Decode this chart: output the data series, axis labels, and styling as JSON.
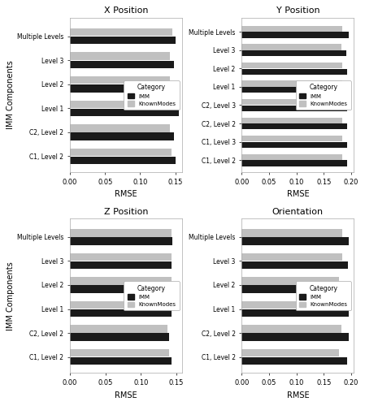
{
  "panels": [
    {
      "title": "X Position",
      "xlabel": "RMSE",
      "ylabel": "IMM Components",
      "xlim": [
        0,
        0.16
      ],
      "xticks": [
        0.0,
        0.05,
        0.1,
        0.15
      ],
      "xticklabels": [
        "0.00",
        "0.05",
        "0.10",
        "0.15"
      ],
      "categories": [
        "C1, Level 2",
        "C2, Level 2",
        "Level 1",
        "Level 2",
        "Level 3",
        "Multiple Levels"
      ],
      "imm": [
        0.15,
        0.148,
        0.155,
        0.148,
        0.148,
        0.15
      ],
      "known": [
        0.145,
        0.143,
        0.145,
        0.143,
        0.143,
        0.146
      ]
    },
    {
      "title": "Y Position",
      "xlabel": "RMSE",
      "ylabel": "IMM Components",
      "xlim": [
        0,
        0.205
      ],
      "xticks": [
        0.0,
        0.05,
        0.1,
        0.15,
        0.2
      ],
      "xticklabels": [
        "0.00",
        "0.05",
        "0.10",
        "0.15",
        "0.20"
      ],
      "categories": [
        "C1, Level 2",
        "C1, Level 3",
        "C2, Level 2",
        "C2, Level 3",
        "Level 1",
        "Level 2",
        "Level 3",
        "Multiple Levels"
      ],
      "imm": [
        0.192,
        0.192,
        0.193,
        0.193,
        0.197,
        0.192,
        0.191,
        0.196
      ],
      "known": [
        0.183,
        0.183,
        0.184,
        0.181,
        0.184,
        0.184,
        0.182,
        0.183
      ]
    },
    {
      "title": "Z Position",
      "xlabel": "RMSE",
      "ylabel": "IMM Components",
      "xlim": [
        0,
        0.158
      ],
      "xticks": [
        0.0,
        0.05,
        0.1,
        0.15
      ],
      "xticklabels": [
        "0.00",
        "0.05",
        "0.10",
        "0.15"
      ],
      "categories": [
        "C1, Level 2",
        "C2, Level 2",
        "Level 1",
        "Level 2",
        "Level 3",
        "Multiple Levels"
      ],
      "imm": [
        0.143,
        0.14,
        0.143,
        0.143,
        0.143,
        0.144
      ],
      "known": [
        0.14,
        0.137,
        0.149,
        0.143,
        0.143,
        0.143
      ]
    },
    {
      "title": "Orientation",
      "xlabel": "RMSE",
      "ylabel": "IMM Components",
      "xlim": [
        0,
        0.205
      ],
      "xticks": [
        0.0,
        0.05,
        0.1,
        0.15,
        0.2
      ],
      "xticklabels": [
        "0.00",
        "0.05",
        "0.10",
        "0.15",
        "0.20"
      ],
      "categories": [
        "C1, Level 2",
        "C2, Level 2",
        "Level 1",
        "Level 2",
        "Level 3",
        "Multiple Levels"
      ],
      "imm": [
        0.193,
        0.196,
        0.196,
        0.19,
        0.194,
        0.195
      ],
      "known": [
        0.178,
        0.182,
        0.183,
        0.178,
        0.183,
        0.183
      ]
    }
  ],
  "color_imm": "#1a1a1a",
  "color_known": "#c0c0c0",
  "bar_height": 0.32,
  "legend_title": "Category",
  "legend_labels": [
    "IMM",
    "KnownModes"
  ],
  "background_color": "#ffffff"
}
